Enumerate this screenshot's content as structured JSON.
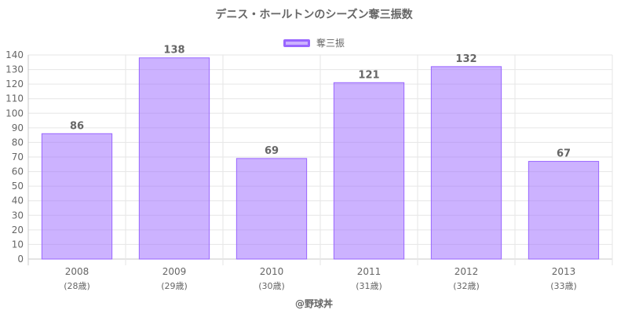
{
  "chart_data": {
    "type": "bar",
    "title": "デニス・ホールトンのシーズン奪三振数",
    "series": [
      {
        "name": "奪三振",
        "values": [
          86,
          138,
          69,
          121,
          132,
          67
        ]
      }
    ],
    "categories": [
      "2008",
      "2009",
      "2010",
      "2011",
      "2012",
      "2013"
    ],
    "category_sublabels": [
      "(28歳)",
      "(29歳)",
      "(30歳)",
      "(31歳)",
      "(32歳)",
      "(33歳)"
    ],
    "ylim": [
      0,
      140
    ],
    "ytick_step": 10,
    "grid": true,
    "legend_position": "top-center",
    "bar_fill": "rgba(153,102,255,0.5)",
    "bar_border": "#9966ff",
    "data_labels": true
  },
  "credit": "@野球丼"
}
